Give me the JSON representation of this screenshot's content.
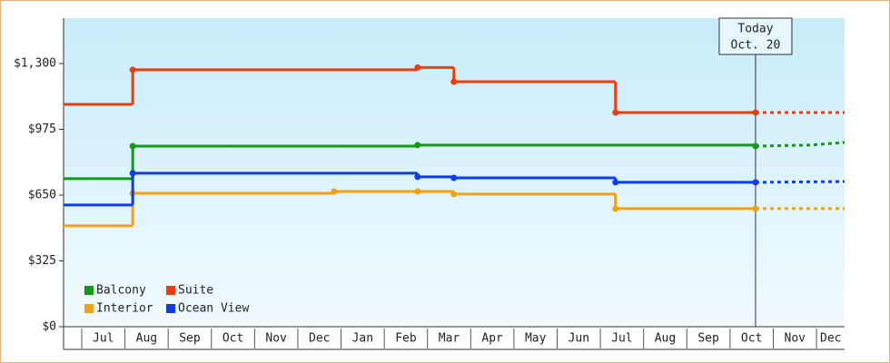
{
  "chart_data": {
    "type": "step-line",
    "xlim": [
      0.58,
      18.65
    ],
    "ylim": [
      0,
      1524
    ],
    "yticks": [
      {
        "value": 0,
        "label": "$0"
      },
      {
        "value": 325,
        "label": "$325"
      },
      {
        "value": 650,
        "label": "$650"
      },
      {
        "value": 975,
        "label": "$975"
      },
      {
        "value": 1300,
        "label": "$1,300"
      }
    ],
    "xticks": [
      {
        "value": 1.5,
        "label": "Jul"
      },
      {
        "value": 2.5,
        "label": "Aug"
      },
      {
        "value": 3.5,
        "label": "Sep"
      },
      {
        "value": 4.5,
        "label": "Oct"
      },
      {
        "value": 5.5,
        "label": "Nov"
      },
      {
        "value": 6.5,
        "label": "Dec"
      },
      {
        "value": 7.5,
        "label": "Jan"
      },
      {
        "value": 8.5,
        "label": "Feb"
      },
      {
        "value": 9.5,
        "label": "Mar"
      },
      {
        "value": 10.5,
        "label": "Apr"
      },
      {
        "value": 11.5,
        "label": "May"
      },
      {
        "value": 12.5,
        "label": "Jun"
      },
      {
        "value": 13.5,
        "label": "Jul"
      },
      {
        "value": 14.5,
        "label": "Aug"
      },
      {
        "value": 15.5,
        "label": "Sep"
      },
      {
        "value": 16.5,
        "label": "Oct"
      },
      {
        "value": 17.5,
        "label": "Nov"
      },
      {
        "value": 18.33,
        "label": "Dec"
      }
    ],
    "legend": "lower-left",
    "today": {
      "x": 16.59,
      "label": [
        "Today",
        "Oct. 20"
      ]
    },
    "series": [
      {
        "name": "Balcony",
        "color": "#139a13",
        "x": [
          0.58,
          2.18,
          8.77,
          16.59
        ],
        "values": [
          731,
          892,
          897,
          892
        ],
        "forecast_x": [
          16.59,
          17.85,
          18.65
        ],
        "forecast_values": [
          892,
          897,
          910
        ]
      },
      {
        "name": "Suite",
        "color": "#f03c0c",
        "x": [
          0.58,
          2.18,
          8.77,
          9.61,
          13.35,
          16.59
        ],
        "values": [
          1098,
          1269,
          1280,
          1210,
          1058,
          1058
        ],
        "forecast_x": [
          16.59,
          18.65
        ],
        "forecast_values": [
          1058,
          1058
        ]
      },
      {
        "name": "Interior",
        "color": "#f5a00c",
        "x": [
          0.58,
          2.18,
          6.84,
          8.77,
          9.61,
          13.35,
          16.59
        ],
        "values": [
          498,
          659,
          668,
          668,
          655,
          583,
          583
        ],
        "forecast_x": [
          16.59,
          18.65
        ],
        "forecast_values": [
          583,
          583
        ]
      },
      {
        "name": "Ocean View",
        "color": "#0c3cf0",
        "x": [
          0.58,
          2.18,
          8.77,
          9.61,
          13.35,
          16.59
        ],
        "values": [
          601,
          758,
          740,
          735,
          713,
          713
        ],
        "forecast_x": [
          16.59,
          18.65
        ],
        "forecast_values": [
          713,
          717
        ]
      }
    ]
  }
}
